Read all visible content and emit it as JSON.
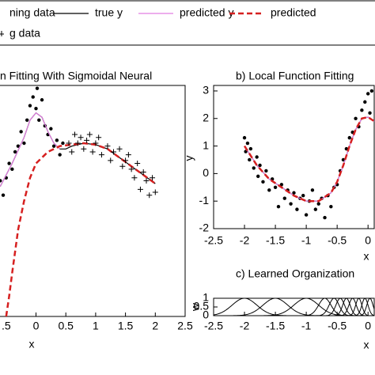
{
  "chart_data": [
    {
      "type": "line",
      "title": "n Fitting With Sigmoidal Neural",
      "x_label": "x",
      "xlim": [
        -0.63,
        2.5
      ],
      "ylim": [
        -5,
        3
      ],
      "xticks": [
        {
          "value": -0.5,
          "label": ".5"
        },
        0,
        0.5,
        1,
        1.5,
        2,
        2.5
      ],
      "series": [
        {
          "name": "ning data",
          "kind": "dot",
          "color": "#000000",
          "x": [
            -0.6,
            -0.55,
            -0.5,
            -0.45,
            -0.4,
            -0.35,
            -0.3,
            -0.25,
            -0.2,
            -0.15,
            -0.1,
            -0.05,
            0,
            0.02,
            0.05,
            0.1,
            0.15,
            0.2,
            0.25,
            0.3,
            0.35,
            0.4,
            0.45
          ],
          "values": [
            -0.3,
            -0.8,
            -0.2,
            0.3,
            0.1,
            0.7,
            0.9,
            1.4,
            1.0,
            1.8,
            2.3,
            2.6,
            2.2,
            2.9,
            1.8,
            2.5,
            1.6,
            1.3,
            1.5,
            0.9,
            1.1,
            0.6,
            1.0
          ]
        },
        {
          "name": "true y",
          "kind": "line",
          "color": "#000000",
          "x": [
            -0.6,
            -0.4,
            -0.2,
            -0.1,
            0,
            0.1,
            0.2,
            0.3,
            0.4,
            0.5,
            0.6,
            0.8,
            1.0,
            1.2,
            1.4,
            1.6,
            1.8,
            2.0
          ],
          "values": [
            -0.5,
            0.3,
            1.2,
            1.8,
            2.05,
            1.9,
            1.4,
            1.0,
            0.8,
            0.8,
            0.9,
            1.0,
            0.95,
            0.8,
            0.5,
            0.2,
            -0.1,
            -0.4
          ]
        },
        {
          "name": "predicted y",
          "kind": "line",
          "color": "#e27ee2",
          "x": [
            -0.6,
            -0.4,
            -0.2,
            -0.1,
            0,
            0.1,
            0.2,
            0.3,
            0.4
          ],
          "values": [
            -0.5,
            0.3,
            1.2,
            1.8,
            2.05,
            1.9,
            1.4,
            1.0,
            0.8
          ]
        },
        {
          "name": "predicted",
          "kind": "dash",
          "color": "#d62020",
          "x": [
            -0.5,
            -0.45,
            -0.4,
            -0.3,
            -0.2,
            -0.1,
            0,
            0.2,
            0.4,
            0.6,
            0.8,
            1.0,
            1.2,
            1.4,
            1.6,
            1.8,
            2.0
          ],
          "values": [
            -5,
            -4.3,
            -3.5,
            -2.0,
            -1.0,
            -0.2,
            0.3,
            0.7,
            0.9,
            0.95,
            1.0,
            0.95,
            0.8,
            0.5,
            0.2,
            -0.1,
            -0.4
          ]
        },
        {
          "name": "g data",
          "kind": "plus",
          "color": "#000000",
          "x": [
            0.55,
            0.6,
            0.65,
            0.7,
            0.75,
            0.8,
            0.85,
            0.9,
            0.95,
            1.0,
            1.05,
            1.1,
            1.2,
            1.25,
            1.3,
            1.4,
            1.45,
            1.5,
            1.55,
            1.6,
            1.65,
            1.7,
            1.75,
            1.8,
            1.85,
            1.9,
            1.95,
            2.0
          ],
          "values": [
            1.0,
            0.7,
            1.3,
            1.0,
            1.2,
            0.8,
            1.1,
            1.3,
            0.7,
            1.0,
            1.2,
            0.6,
            0.9,
            0.4,
            0.7,
            0.8,
            0.2,
            0.4,
            0.6,
            0.1,
            -0.2,
            0.3,
            -0.6,
            0.0,
            -0.3,
            -0.8,
            -0.2,
            -0.7
          ]
        }
      ]
    },
    {
      "type": "line",
      "title": "b) Local Function Fitting",
      "x_label": "x",
      "y_label": "y",
      "xlim": [
        -2.5,
        0.1
      ],
      "ylim": [
        -2,
        3.2
      ],
      "xticks": [
        -2.5,
        -2,
        -1.5,
        -1,
        -0.5,
        0
      ],
      "yticks": [
        -2,
        -1,
        0,
        1,
        2,
        3
      ],
      "series": [
        {
          "kind": "dot",
          "color": "#000000",
          "x": [
            -2,
            -1.98,
            -1.95,
            -1.92,
            -1.9,
            -1.85,
            -1.8,
            -1.78,
            -1.75,
            -1.7,
            -1.65,
            -1.6,
            -1.55,
            -1.5,
            -1.45,
            -1.4,
            -1.35,
            -1.3,
            -1.25,
            -1.2,
            -1.15,
            -1.1,
            -1.05,
            -1.0,
            -0.95,
            -0.9,
            -0.85,
            -0.8,
            -0.75,
            -0.7,
            -0.65,
            -0.6,
            -0.55,
            -0.5,
            -0.45,
            -0.4,
            -0.35,
            -0.3,
            -0.25,
            -0.2,
            -0.15,
            -0.1,
            -0.05,
            0,
            0.03,
            0.06
          ],
          "values": [
            1.3,
            0.8,
            1.1,
            0.5,
            0.9,
            0.2,
            0.6,
            -0.1,
            0.3,
            -0.3,
            0.1,
            -0.6,
            -0.2,
            -0.5,
            -1.2,
            -0.4,
            -0.9,
            -0.6,
            -1.1,
            -0.7,
            -1.3,
            -0.9,
            -0.8,
            -1.5,
            -1.0,
            -0.6,
            -1.3,
            -1.1,
            -0.9,
            -1.6,
            -0.8,
            -1.2,
            -0.5,
            -0.4,
            0.1,
            0.5,
            0.9,
            1.3,
            1.5,
            2.0,
            1.7,
            2.3,
            2.6,
            2.9,
            2.2,
            3.0
          ]
        },
        {
          "kind": "line",
          "color": "#000000",
          "x": [
            -2,
            -1.8,
            -1.6,
            -1.4,
            -1.2,
            -1.0,
            -0.8,
            -0.6,
            -0.5,
            -0.4,
            -0.3,
            -0.2,
            -0.1,
            0,
            0.1
          ],
          "values": [
            1.0,
            0.3,
            -0.2,
            -0.5,
            -0.8,
            -1.0,
            -1.0,
            -0.7,
            -0.3,
            0.3,
            1.0,
            1.6,
            2.0,
            2.05,
            1.9
          ]
        },
        {
          "kind": "line",
          "color": "#e27ee2",
          "x": [
            -2,
            -1.8,
            -1.6,
            -1.4,
            -1.2,
            -1.0,
            -0.8,
            -0.6,
            -0.5,
            -0.4,
            -0.3,
            -0.2,
            -0.1,
            0,
            0.1
          ],
          "values": [
            1.0,
            0.3,
            -0.2,
            -0.5,
            -0.8,
            -1.0,
            -1.0,
            -0.7,
            -0.3,
            0.3,
            1.0,
            1.6,
            2.0,
            2.05,
            1.9
          ]
        },
        {
          "kind": "dash",
          "color": "#d62020",
          "x": [
            -2,
            -1.8,
            -1.6,
            -1.4,
            -1.2,
            -1.0,
            -0.8,
            -0.6,
            -0.5,
            -0.4,
            -0.3,
            -0.2,
            -0.1,
            0,
            0.1
          ],
          "values": [
            1.0,
            0.3,
            -0.2,
            -0.5,
            -0.8,
            -1.0,
            -1.0,
            -0.7,
            -0.3,
            0.3,
            1.0,
            1.6,
            2.0,
            2.05,
            1.9
          ]
        }
      ]
    },
    {
      "type": "kernel",
      "title": "c) Learned Organization",
      "x_label": "x",
      "y_label": "w",
      "xlim": [
        -2.5,
        0.1
      ],
      "ylim": [
        0,
        1
      ],
      "xticks": [
        -2.5,
        -2,
        -1.5,
        -1,
        -0.5,
        0
      ],
      "yticks": [
        0,
        0.5,
        1
      ],
      "centers": [
        -2,
        -1.5,
        -1,
        -0.7,
        -0.55,
        -0.45,
        -0.35,
        -0.25,
        -0.15,
        -0.05,
        0.03
      ],
      "widths": [
        0.2,
        0.2,
        0.2,
        0.1,
        0.08,
        0.07,
        0.06,
        0.06,
        0.05,
        0.05,
        0.05
      ],
      "color": "#000000"
    }
  ]
}
